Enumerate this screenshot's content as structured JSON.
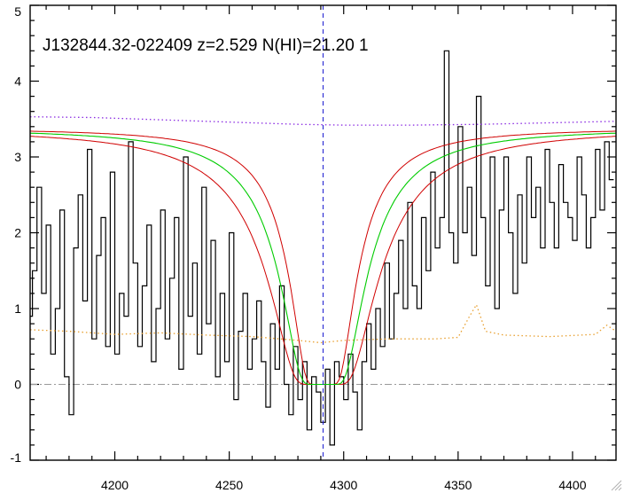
{
  "chart_data": {
    "type": "line",
    "title": "J132844.32-022409 z=2.529 N(HI)=21.20 1",
    "xlabel": "",
    "ylabel": "",
    "xlim": [
      4163,
      4419
    ],
    "ylim": [
      -1,
      5
    ],
    "x_ticks": [
      4200,
      4250,
      4300,
      4350,
      4400
    ],
    "y_ticks": [
      -1,
      0,
      1,
      2,
      3,
      4,
      5
    ],
    "grid": false,
    "vline": {
      "x": 4291,
      "color": "#1a1ad0",
      "style": "dashed"
    },
    "hline": {
      "y": 0,
      "color": "#9a9a9a",
      "style": "dashdot"
    },
    "dla": {
      "center": 4291,
      "continuum": 3.38,
      "width": 18,
      "width_lo": 14,
      "width_hi": 23
    },
    "series": [
      {
        "role": "flux",
        "color": "#000000",
        "style": "step",
        "x": [
          4163,
          4165,
          4167,
          4169,
          4171,
          4173,
          4175,
          4177,
          4179,
          4181,
          4183,
          4185,
          4187,
          4189,
          4191,
          4193,
          4195,
          4197,
          4199,
          4201,
          4203,
          4205,
          4207,
          4209,
          4211,
          4213,
          4215,
          4217,
          4219,
          4221,
          4223,
          4225,
          4227,
          4229,
          4231,
          4233,
          4235,
          4237,
          4239,
          4241,
          4243,
          4245,
          4247,
          4249,
          4251,
          4253,
          4255,
          4257,
          4259,
          4261,
          4263,
          4265,
          4267,
          4269,
          4271,
          4273,
          4275,
          4277,
          4279,
          4281,
          4283,
          4285,
          4287,
          4289,
          4291,
          4293,
          4295,
          4297,
          4299,
          4301,
          4303,
          4305,
          4307,
          4309,
          4311,
          4313,
          4315,
          4317,
          4319,
          4321,
          4323,
          4325,
          4327,
          4329,
          4331,
          4333,
          4335,
          4337,
          4339,
          4341,
          4343,
          4345,
          4347,
          4349,
          4351,
          4353,
          4355,
          4357,
          4359,
          4361,
          4363,
          4365,
          4367,
          4369,
          4371,
          4373,
          4375,
          4377,
          4379,
          4381,
          4383,
          4385,
          4387,
          4389,
          4391,
          4393,
          4395,
          4397,
          4399,
          4401,
          4403,
          4405,
          4407,
          4409,
          4411,
          4413,
          4415,
          4417
        ],
        "y": [
          0.9,
          1.5,
          2.6,
          1.2,
          2.1,
          0.4,
          1.0,
          2.3,
          0.1,
          -0.4,
          1.8,
          2.5,
          1.1,
          3.1,
          0.6,
          1.7,
          2.2,
          0.5,
          2.8,
          0.4,
          1.2,
          0.9,
          3.2,
          1.6,
          0.5,
          1.3,
          2.1,
          0.3,
          1.0,
          2.3,
          0.6,
          1.4,
          2.2,
          0.2,
          3.0,
          0.9,
          1.6,
          0.4,
          2.6,
          0.8,
          1.9,
          0.1,
          1.2,
          0.3,
          2.0,
          -0.2,
          0.7,
          1.2,
          0.2,
          0.6,
          1.1,
          0.3,
          -0.3,
          0.8,
          0.2,
          1.3,
          0.0,
          -0.4,
          0.5,
          -0.2,
          0.3,
          -0.6,
          0.1,
          -0.1,
          -0.5,
          0.2,
          -0.8,
          0.3,
          0.1,
          -0.2,
          0.4,
          -0.1,
          -0.6,
          0.3,
          0.8,
          0.2,
          1.0,
          0.5,
          1.6,
          0.6,
          1.2,
          1.9,
          1.0,
          2.4,
          1.3,
          1.0,
          2.2,
          1.5,
          2.8,
          1.8,
          2.2,
          4.4,
          2.0,
          1.6,
          3.4,
          2.0,
          2.6,
          1.7,
          3.8,
          2.2,
          1.3,
          3.0,
          1.0,
          2.3,
          3.0,
          2.0,
          1.2,
          2.5,
          1.6,
          3.0,
          2.2,
          2.6,
          1.8,
          3.1,
          2.4,
          1.8,
          2.9,
          2.4,
          2.2,
          1.9,
          3.0,
          2.5,
          1.8,
          2.2,
          3.1,
          2.3,
          3.2,
          2.7
        ]
      },
      {
        "role": "error",
        "color": "#e8a030",
        "style": "dotted",
        "x": [
          4163,
          4180,
          4200,
          4220,
          4240,
          4260,
          4280,
          4290,
          4300,
          4320,
          4340,
          4350,
          4355,
          4358,
          4362,
          4370,
          4390,
          4410,
          4415,
          4419
        ],
        "y": [
          0.72,
          0.7,
          0.66,
          0.68,
          0.65,
          0.63,
          0.58,
          0.55,
          0.58,
          0.6,
          0.6,
          0.62,
          0.9,
          1.05,
          0.7,
          0.65,
          0.63,
          0.66,
          0.78,
          0.7
        ]
      },
      {
        "role": "continuum",
        "color": "#8a2be2",
        "style": "dotted",
        "x": [
          4163,
          4190,
          4220,
          4250,
          4280,
          4300,
          4330,
          4360,
          4390,
          4419
        ],
        "y": [
          3.53,
          3.52,
          3.49,
          3.46,
          3.43,
          3.42,
          3.42,
          3.43,
          3.45,
          3.47
        ]
      }
    ]
  }
}
